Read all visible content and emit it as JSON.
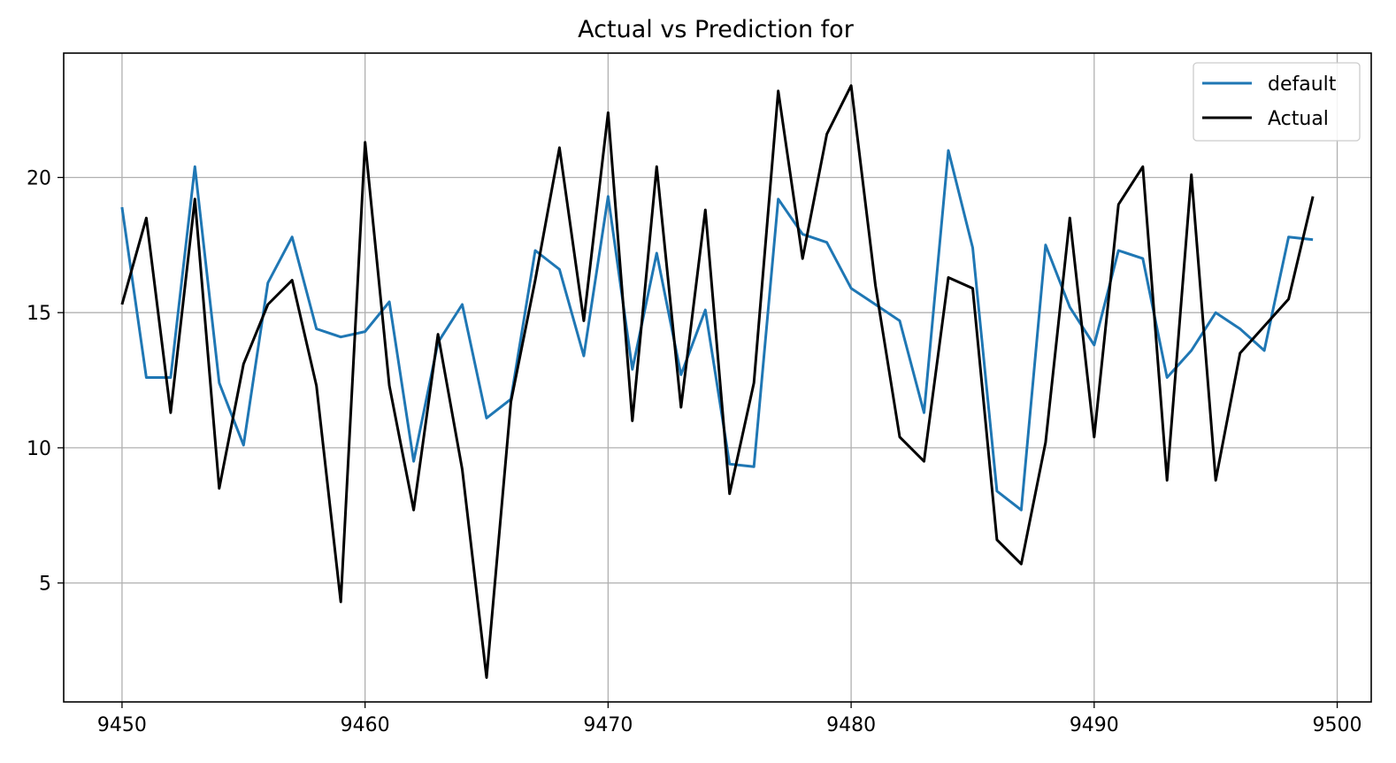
{
  "chart_data": {
    "type": "line",
    "title": "Actual vs Prediction for",
    "xlabel": "",
    "ylabel": "",
    "xlim": [
      9447.6,
      9501.4
    ],
    "ylim": [
      0.6,
      24.6
    ],
    "xticks": [
      9450,
      9460,
      9470,
      9480,
      9490,
      9500
    ],
    "yticks": [
      5,
      10,
      15,
      20
    ],
    "grid": true,
    "legend_position": "top-right",
    "x": [
      9450,
      9451,
      9452,
      9453,
      9454,
      9455,
      9456,
      9457,
      9458,
      9459,
      9460,
      9461,
      9462,
      9463,
      9464,
      9465,
      9466,
      9467,
      9468,
      9469,
      9470,
      9471,
      9472,
      9473,
      9474,
      9475,
      9476,
      9477,
      9478,
      9479,
      9480,
      9481,
      9482,
      9483,
      9484,
      9485,
      9486,
      9487,
      9488,
      9489,
      9490,
      9491,
      9492,
      9493,
      9494,
      9495,
      9496,
      9497,
      9498,
      9499
    ],
    "series": [
      {
        "name": "default",
        "color": "#1f77b4",
        "values": [
          18.9,
          12.6,
          12.6,
          20.4,
          12.4,
          10.1,
          16.1,
          17.8,
          14.4,
          14.1,
          14.3,
          15.4,
          9.5,
          13.9,
          15.3,
          11.1,
          11.8,
          17.3,
          16.6,
          13.4,
          19.3,
          12.9,
          17.2,
          12.7,
          15.1,
          9.4,
          9.3,
          19.2,
          17.9,
          17.6,
          15.9,
          15.3,
          14.7,
          11.3,
          21.0,
          17.4,
          8.4,
          7.7,
          17.5,
          15.2,
          13.8,
          17.3,
          17.0,
          12.6,
          13.6,
          15.0,
          14.4,
          13.6,
          17.8,
          17.7
        ]
      },
      {
        "name": "Actual",
        "color": "#000000",
        "values": [
          15.3,
          18.5,
          11.3,
          19.2,
          8.5,
          13.1,
          15.3,
          16.2,
          12.3,
          4.3,
          21.3,
          12.3,
          7.7,
          14.2,
          9.2,
          1.5,
          11.7,
          16.2,
          21.1,
          14.7,
          22.4,
          11.0,
          20.4,
          11.5,
          18.8,
          8.3,
          12.4,
          23.2,
          17.0,
          21.6,
          23.4,
          16.0,
          10.4,
          9.5,
          16.3,
          15.9,
          6.6,
          5.7,
          10.2,
          18.5,
          10.4,
          19.0,
          20.4,
          8.8,
          20.1,
          8.8,
          13.5,
          14.5,
          15.5,
          19.3
        ]
      }
    ]
  }
}
